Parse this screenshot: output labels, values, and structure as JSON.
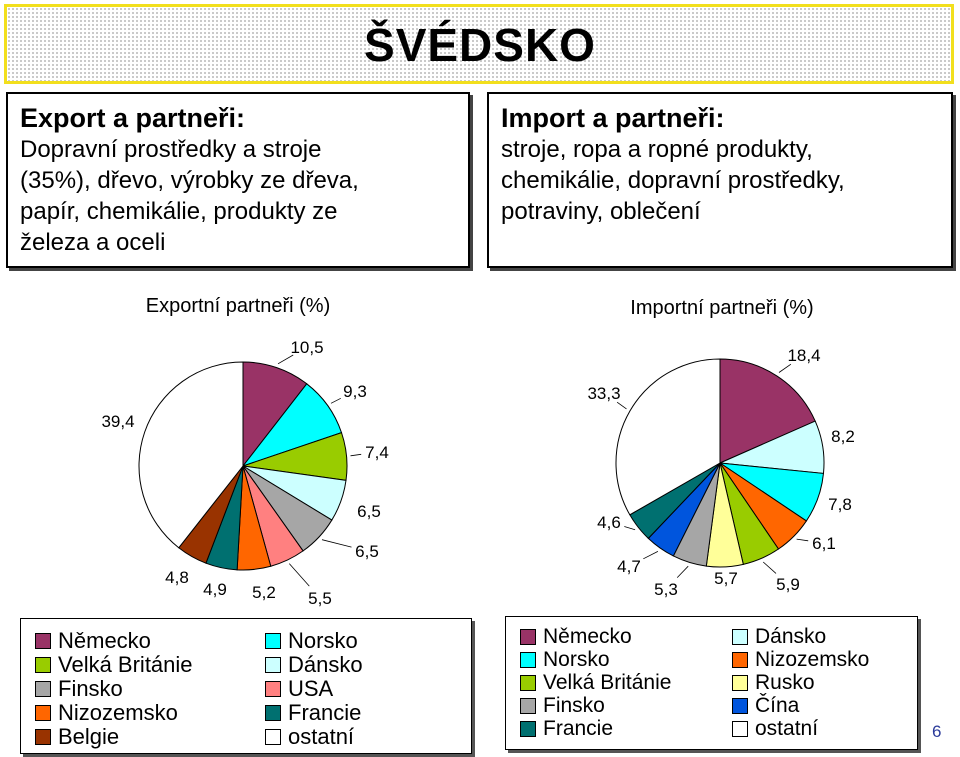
{
  "title": "ŠVÉDSKO",
  "export_box": {
    "heading": "Export a partneři:",
    "lines": [
      "Dopravní prostředky a stroje",
      "(35%), dřevo, výrobky ze dřeva,",
      "papír, chemikálie, produkty ze",
      "železa a oceli"
    ]
  },
  "import_box": {
    "heading": "Import a partneři:",
    "lines": [
      "stroje, ropa a ropné produkty,",
      "chemikálie, dopravní prostředky,",
      "potraviny, oblečení"
    ]
  },
  "chart_data": [
    {
      "type": "pie",
      "title": "Exportní partneři (%)",
      "categories": [
        "Německo",
        "Norsko",
        "Velká Británie",
        "Dánsko",
        "Finsko",
        "USA",
        "Nizozemsko",
        "Francie",
        "Belgie",
        "ostatní"
      ],
      "values": [
        10.5,
        9.3,
        7.4,
        6.5,
        6.5,
        5.5,
        5.2,
        4.9,
        4.8,
        39.4
      ],
      "labels": [
        "10,5",
        "9,3",
        "7,4",
        "6,5",
        "6,5",
        "5,5",
        "5,2",
        "4,9",
        "4,8",
        "39,4"
      ],
      "colors": [
        "#993366",
        "#00ffff",
        "#99cc00",
        "#ccffff",
        "#a6a6a6",
        "#ff8080",
        "#ff6600",
        "#007070",
        "#993300",
        "#ffffff"
      ],
      "legend": [
        {
          "label": "Německo",
          "color": "#993366"
        },
        {
          "label": "Norsko",
          "color": "#00ffff"
        },
        {
          "label": "Velká Británie",
          "color": "#99cc00"
        },
        {
          "label": "Dánsko",
          "color": "#ccffff"
        },
        {
          "label": "Finsko",
          "color": "#a6a6a6"
        },
        {
          "label": "USA",
          "color": "#ff8080"
        },
        {
          "label": "Nizozemsko",
          "color": "#ff6600"
        },
        {
          "label": "Francie",
          "color": "#007070"
        },
        {
          "label": "Belgie",
          "color": "#993300"
        },
        {
          "label": "ostatní",
          "color": "#ffffff"
        }
      ],
      "legend_placement": "bottom"
    },
    {
      "type": "pie",
      "title": "Importní partneři (%)",
      "categories": [
        "Německo",
        "Dánsko",
        "Norsko",
        "Nizozemsko",
        "Velká Británie",
        "Rusko",
        "Finsko",
        "Čína",
        "Francie",
        "ostatní"
      ],
      "values": [
        18.4,
        8.2,
        7.8,
        6.1,
        5.9,
        5.7,
        5.3,
        4.7,
        4.6,
        33.3
      ],
      "labels": [
        "18,4",
        "8,2",
        "7,8",
        "6,1",
        "5,9",
        "5,7",
        "5,3",
        "4,7",
        "4,6",
        "33,3"
      ],
      "colors": [
        "#993366",
        "#ccffff",
        "#00ffff",
        "#ff6600",
        "#99cc00",
        "#ffff99",
        "#a6a6a6",
        "#0055dd",
        "#007070",
        "#ffffff"
      ],
      "legend": [
        {
          "label": "Německo",
          "color": "#993366"
        },
        {
          "label": "Dánsko",
          "color": "#ccffff"
        },
        {
          "label": "Norsko",
          "color": "#00ffff"
        },
        {
          "label": "Nizozemsko",
          "color": "#ff6600"
        },
        {
          "label": "Velká Británie",
          "color": "#99cc00"
        },
        {
          "label": "Rusko",
          "color": "#ffff99"
        },
        {
          "label": "Finsko",
          "color": "#a6a6a6"
        },
        {
          "label": "Čína",
          "color": "#0055dd"
        },
        {
          "label": "Francie",
          "color": "#007070"
        },
        {
          "label": "ostatní",
          "color": "#ffffff"
        }
      ],
      "legend_placement": "bottom"
    }
  ],
  "page_number": "6"
}
